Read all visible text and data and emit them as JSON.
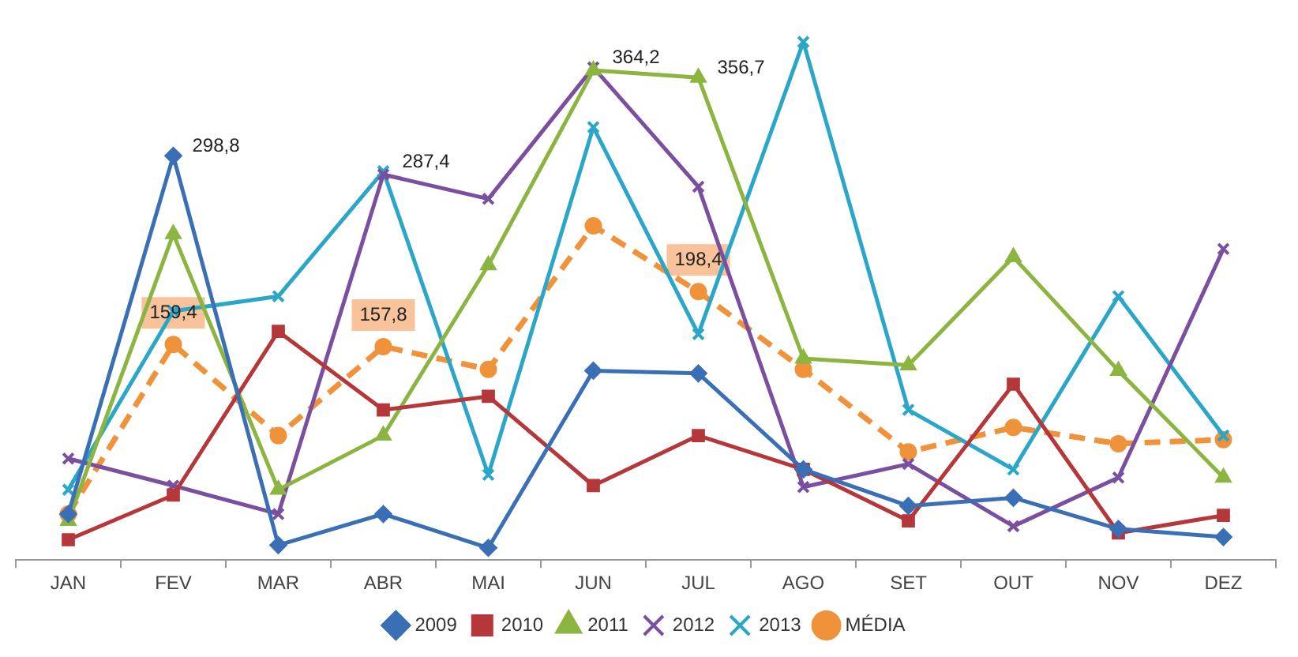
{
  "chart_data": {
    "type": "line",
    "categories": [
      "JAN",
      "FEV",
      "MAR",
      "ABR",
      "MAI",
      "JUN",
      "JUL",
      "AGO",
      "SET",
      "OUT",
      "NOV",
      "DEZ"
    ],
    "tick_labels": "x",
    "grid": false,
    "legend": "bottom",
    "series": [
      {
        "name": "2009",
        "color": "#3a6fb5",
        "marker": "diamond",
        "values": [
          34,
          298.8,
          11,
          34,
          9,
          140,
          138,
          67,
          40,
          46,
          23,
          17
        ],
        "value_labels": [
          null,
          "298,8",
          null,
          null,
          null,
          null,
          null,
          null,
          null,
          null,
          null,
          null
        ]
      },
      {
        "name": "2010",
        "color": "#b5373a",
        "marker": "square",
        "values": [
          15,
          48,
          169,
          111,
          121,
          55,
          92,
          67,
          29,
          130,
          20,
          33
        ]
      },
      {
        "name": "2011",
        "color": "#8bb440",
        "marker": "triangle",
        "values": [
          29,
          241,
          52,
          92,
          218,
          362,
          356.7,
          149,
          144,
          224,
          140,
          61
        ],
        "value_labels": [
          null,
          null,
          null,
          null,
          null,
          null,
          "356,7",
          null,
          null,
          null,
          null,
          null
        ]
      },
      {
        "name": "2012",
        "color": "#7a4fa0",
        "marker": "cross",
        "values": [
          75,
          55,
          34,
          285,
          267,
          364.2,
          276,
          54,
          71,
          25,
          61,
          230
        ],
        "value_labels": [
          null,
          null,
          null,
          null,
          null,
          "364,2",
          null,
          null,
          null,
          null,
          null,
          null
        ]
      },
      {
        "name": "2013",
        "color": "#2aa6c8",
        "marker": "cross",
        "values": [
          52,
          184,
          195,
          287.4,
          63,
          320,
          167,
          383,
          111,
          67,
          195,
          92
        ],
        "value_labels": [
          null,
          null,
          null,
          "287,4",
          null,
          null,
          null,
          null,
          null,
          null,
          null,
          null
        ]
      },
      {
        "name": "MÉDIA",
        "color": "#f0923a",
        "marker": "circle",
        "line_style": "dashed",
        "values": [
          34,
          159.4,
          92,
          157.8,
          141,
          247,
          198.4,
          141,
          80,
          98,
          86,
          89
        ],
        "value_labels": [
          null,
          "159,4",
          null,
          "157,8",
          null,
          null,
          "198,4",
          null,
          null,
          null,
          null,
          null
        ]
      }
    ]
  }
}
